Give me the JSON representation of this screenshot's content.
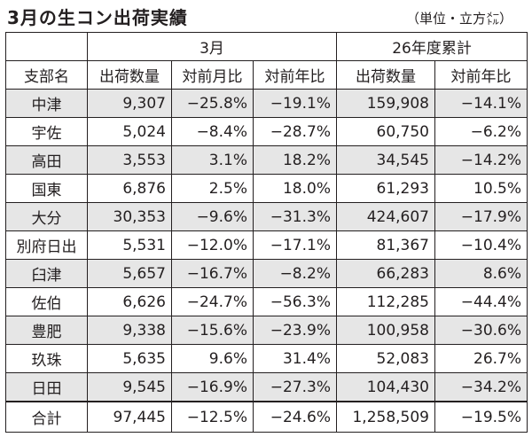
{
  "title": "3月の生コン出荷実績",
  "unit": "（単位・立方㍍）",
  "group_headers": [
    "3月",
    "26年度累計"
  ],
  "column_headers": [
    "支部名",
    "出荷数量",
    "対前月比",
    "対前年比",
    "出荷数量",
    "対前年比"
  ],
  "rows": [
    [
      "中津",
      "9,307",
      "−25.8%",
      "−19.1%",
      "159,908",
      "−14.1%"
    ],
    [
      "宇佐",
      "5,024",
      "−8.4%",
      "−28.7%",
      "60,750",
      "−6.2%"
    ],
    [
      "高田",
      "3,553",
      "3.1%",
      "18.2%",
      "34,545",
      "−14.2%"
    ],
    [
      "国東",
      "6,876",
      "2.5%",
      "18.0%",
      "61,293",
      "10.5%"
    ],
    [
      "大分",
      "30,353",
      "−9.6%",
      "−31.3%",
      "424,607",
      "−17.9%"
    ],
    [
      "別府日出",
      "5,531",
      "−12.0%",
      "−17.1%",
      "81,367",
      "−10.4%"
    ],
    [
      "臼津",
      "5,657",
      "−16.7%",
      "−8.2%",
      "66,283",
      "8.6%"
    ],
    [
      "佐伯",
      "6,626",
      "−24.7%",
      "−56.3%",
      "112,285",
      "−44.4%"
    ],
    [
      "豊肥",
      "9,338",
      "−15.6%",
      "−23.9%",
      "100,958",
      "−30.6%"
    ],
    [
      "玖珠",
      "5,635",
      "9.6%",
      "31.4%",
      "52,083",
      "26.7%"
    ],
    [
      "日田",
      "9,545",
      "−16.9%",
      "−27.3%",
      "104,430",
      "−34.2%"
    ]
  ],
  "total": [
    "合計",
    "97,445",
    "−12.5%",
    "−24.6%",
    "1,258,509",
    "−19.5%"
  ]
}
